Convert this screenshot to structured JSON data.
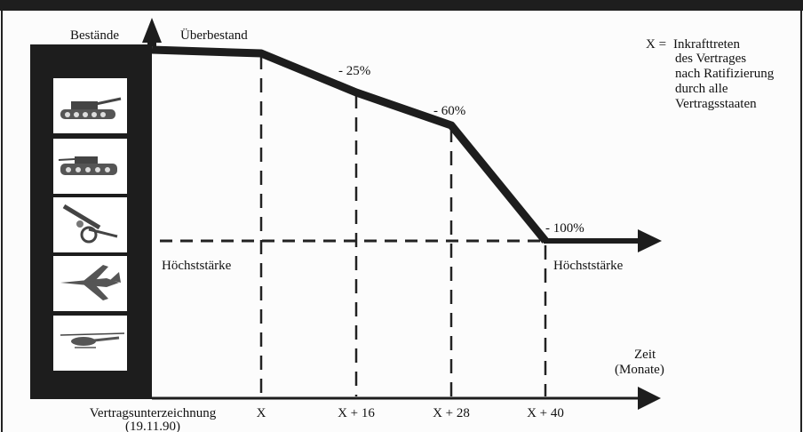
{
  "labels": {
    "y_axis": "Bestände",
    "top_start": "Überbestand",
    "pct_25": "- 25%",
    "pct_60": "- 60%",
    "pct_100": "- 100%",
    "hoechst_left": "Höchststärke",
    "hoechst_right": "Höchststärke",
    "zeit": "Zeit",
    "monate": "(Monate)",
    "signing": "Vertragsunterzeichnung",
    "signing_date": "(19.11.90)"
  },
  "legend": {
    "key": "X =",
    "lines": [
      "Inkrafttreten",
      "des Vertrages",
      "nach Ratifizierung",
      "durch alle",
      "Vertragsstaaten"
    ]
  },
  "ticks": [
    "X",
    "X + 16",
    "X + 28",
    "X + 40"
  ],
  "icons": [
    "battle-tank-icon",
    "armoured-combat-vehicle-icon",
    "artillery-icon",
    "combat-aircraft-icon",
    "attack-helicopter-icon"
  ]
}
